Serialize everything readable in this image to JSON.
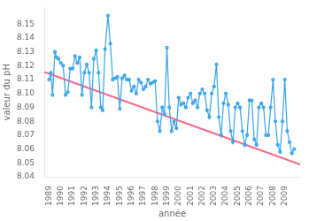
{
  "chart_data": {
    "type": "line",
    "x_label": "année",
    "y_label": "valeur du pH",
    "xlim": [
      1988.6,
      2010.3
    ],
    "ylim": [
      8.04,
      8.162
    ],
    "xticks": [
      1989,
      1990,
      1991,
      1992,
      1993,
      1994,
      1995,
      1996,
      1997,
      1998,
      1999,
      2000,
      2001,
      2002,
      2003,
      2004,
      2005,
      2006,
      2007,
      2008,
      2009
    ],
    "yticks": [
      8.04,
      8.05,
      8.06,
      8.07,
      8.08,
      8.09,
      {
        "value": 8.1,
        "label": "8.10"
      },
      8.11,
      8.12,
      8.13,
      8.14,
      8.15
    ],
    "grid": false,
    "series": [
      {
        "marker": "circle",
        "x": [
          1989.0,
          1989.15,
          1989.3,
          1989.5,
          1989.65,
          1989.8,
          1990.0,
          1990.2,
          1990.4,
          1990.6,
          1990.8,
          1991.0,
          1991.2,
          1991.4,
          1991.6,
          1991.8,
          1992.0,
          1992.2,
          1992.4,
          1992.6,
          1992.8,
          1993.0,
          1993.2,
          1993.4,
          1993.55,
          1993.75,
          1994.0,
          1994.2,
          1994.4,
          1994.6,
          1994.8,
          1995.0,
          1995.2,
          1995.4,
          1995.6,
          1995.8,
          1996.0,
          1996.2,
          1996.4,
          1996.6,
          1996.8,
          1997.0,
          1997.2,
          1997.4,
          1997.6,
          1997.8,
          1998.0,
          1998.2,
          1998.4,
          1998.6,
          1998.8,
          1999.0,
          1999.2,
          1999.4,
          1999.6,
          1999.8,
          2000.0,
          2000.2,
          2000.4,
          2000.6,
          2000.8,
          2001.0,
          2001.2,
          2001.4,
          2001.6,
          2001.8,
          2002.0,
          2002.2,
          2002.4,
          2002.6,
          2002.8,
          2003.0,
          2003.2,
          2003.4,
          2003.6,
          2003.8,
          2004.0,
          2004.2,
          2004.4,
          2004.6,
          2004.8,
          2005.0,
          2005.2,
          2005.4,
          2005.6,
          2005.8,
          2006.0,
          2006.2,
          2006.4,
          2006.6,
          2006.8,
          2007.0,
          2007.2,
          2007.4,
          2007.6,
          2007.8,
          2008.0,
          2008.2,
          2008.4,
          2008.6,
          2008.8,
          2009.0,
          2009.2,
          2009.4,
          2009.6,
          2009.8
        ],
        "values": [
          8.11,
          8.115,
          8.099,
          8.13,
          8.126,
          8.125,
          8.122,
          8.12,
          8.099,
          8.101,
          8.118,
          8.118,
          8.127,
          8.122,
          8.126,
          8.099,
          8.115,
          8.121,
          8.115,
          8.09,
          8.125,
          8.131,
          8.115,
          8.09,
          8.088,
          8.132,
          8.156,
          8.136,
          8.11,
          8.111,
          8.112,
          8.089,
          8.111,
          8.113,
          8.11,
          8.11,
          8.102,
          8.105,
          8.1,
          8.11,
          8.108,
          8.103,
          8.105,
          8.11,
          8.107,
          8.108,
          8.109,
          8.08,
          8.073,
          8.09,
          8.085,
          8.133,
          8.09,
          8.073,
          8.08,
          8.075,
          8.097,
          8.092,
          8.093,
          8.09,
          8.097,
          8.1,
          8.093,
          8.095,
          8.09,
          8.1,
          8.103,
          8.1,
          8.088,
          8.083,
          8.1,
          8.105,
          8.121,
          8.083,
          8.07,
          8.093,
          8.1,
          8.092,
          8.073,
          8.065,
          8.09,
          8.093,
          8.09,
          8.073,
          8.063,
          8.07,
          8.095,
          8.095,
          8.067,
          8.063,
          8.09,
          8.093,
          8.09,
          8.07,
          8.07,
          8.09,
          8.11,
          8.08,
          8.063,
          8.058,
          8.08,
          8.11,
          8.073,
          8.065,
          8.057,
          8.06
        ]
      },
      {
        "marker": "none",
        "x": [
          1988.6,
          2010.3
        ],
        "values": [
          8.1155,
          8.049
        ]
      }
    ]
  }
}
